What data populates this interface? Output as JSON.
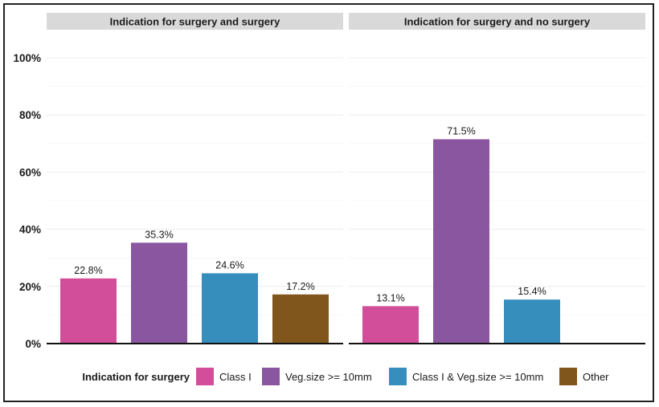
{
  "chart_data": {
    "type": "bar",
    "ylim": [
      0,
      100
    ],
    "yticks": [
      0,
      20,
      40,
      60,
      80,
      100
    ],
    "ytick_labels": [
      "0%",
      "20%",
      "40%",
      "60%",
      "80%",
      "100%"
    ],
    "grid": true,
    "legend_position": "bottom",
    "legend_title": "Indication for surgery",
    "categories": [
      "Class I",
      "Veg.size >= 10mm",
      "Class I & Veg.size >= 10mm",
      "Other"
    ],
    "colors": {
      "Class I": "#D24E9A",
      "Veg.size >= 10mm": "#8A56A0",
      "Class I & Veg.size >= 10mm": "#358EBC",
      "Other": "#80561C"
    },
    "panels": [
      {
        "title": "Indication for surgery and surgery",
        "bars": [
          {
            "category": "Class I",
            "value": 22.8,
            "label": "22.8%"
          },
          {
            "category": "Veg.size >= 10mm",
            "value": 35.3,
            "label": "35.3%"
          },
          {
            "category": "Class I & Veg.size >= 10mm",
            "value": 24.6,
            "label": "24.6%"
          },
          {
            "category": "Other",
            "value": 17.2,
            "label": "17.2%"
          }
        ]
      },
      {
        "title": "Indication for surgery and no surgery",
        "bars": [
          {
            "category": "Class I",
            "value": 13.1,
            "label": "13.1%"
          },
          {
            "category": "Veg.size >= 10mm",
            "value": 71.5,
            "label": "71.5%"
          },
          {
            "category": "Class I & Veg.size >= 10mm",
            "value": 15.4,
            "label": "15.4%"
          }
        ]
      }
    ]
  }
}
